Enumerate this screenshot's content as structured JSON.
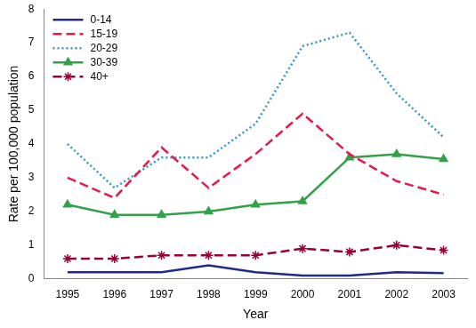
{
  "chart_data": {
    "type": "line",
    "x_label": "Year",
    "y_label": "Rate per 100,000 population",
    "categories": [
      "1995",
      "1996",
      "1997",
      "1998",
      "1999",
      "2000",
      "2001",
      "2002",
      "2003"
    ],
    "series": [
      {
        "name": "0-14",
        "color": "#1f2a8c",
        "line_style": "solid",
        "marker": "none",
        "values": [
          0.2,
          0.2,
          0.2,
          0.4,
          0.2,
          0.1,
          0.1,
          0.2,
          0.17
        ]
      },
      {
        "name": "15-19",
        "color": "#e8184a",
        "line_style": "dashed",
        "marker": "none",
        "values": [
          3.0,
          2.4,
          3.9,
          2.7,
          3.7,
          4.9,
          3.7,
          2.9,
          2.5
        ]
      },
      {
        "name": "20-29",
        "color": "#3399cc",
        "line_style": "dotted",
        "marker": "none",
        "values": [
          4.0,
          2.7,
          3.6,
          3.6,
          4.6,
          6.9,
          7.3,
          5.5,
          4.2
        ]
      },
      {
        "name": "30-39",
        "color": "#33a04a",
        "line_style": "solid",
        "marker": "triangle",
        "values": [
          2.2,
          1.9,
          1.9,
          2.0,
          2.2,
          2.3,
          3.6,
          3.7,
          3.55
        ]
      },
      {
        "name": "40+",
        "color": "#990033",
        "line_style": "dashed",
        "marker": "star",
        "values": [
          0.6,
          0.6,
          0.7,
          0.7,
          0.7,
          0.9,
          0.8,
          1.0,
          0.85
        ]
      }
    ],
    "ylim": [
      0,
      8
    ],
    "yticks": [
      0,
      1,
      2,
      3,
      4,
      5,
      6,
      7,
      8
    ],
    "grid": false,
    "legend": "top-left"
  }
}
